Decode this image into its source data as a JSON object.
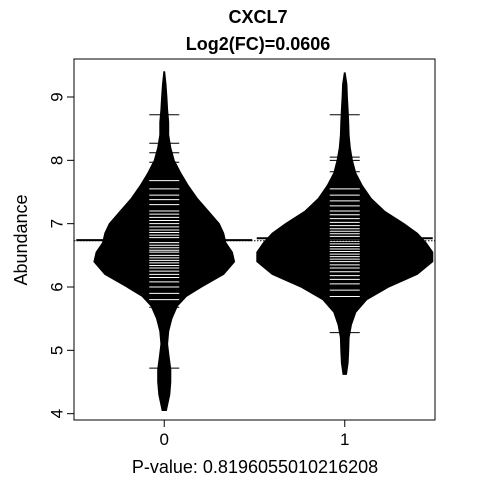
{
  "chart_data": {
    "type": "beanplot",
    "title": "CXCL7",
    "subtitle": "Log2(FC)=0.0606",
    "xlabel": "P-value: 0.819605501021620​8",
    "ylabel": "Abundance",
    "categories": [
      "0",
      "1"
    ],
    "ylim": [
      3.9,
      9.6
    ],
    "xlim": [
      0.5,
      2.5
    ],
    "yticks": [
      4,
      5,
      6,
      7,
      8,
      9
    ],
    "overall_mean": 6.73,
    "groups": [
      {
        "label": "0",
        "mean": 6.74,
        "density": [
          [
            4.05,
            0.01
          ],
          [
            4.3,
            0.025
          ],
          [
            4.5,
            0.03
          ],
          [
            4.7,
            0.03
          ],
          [
            4.9,
            0.022
          ],
          [
            5.1,
            0.015
          ],
          [
            5.3,
            0.02
          ],
          [
            5.5,
            0.035
          ],
          [
            5.7,
            0.06
          ],
          [
            5.85,
            0.1
          ],
          [
            6.0,
            0.17
          ],
          [
            6.2,
            0.27
          ],
          [
            6.4,
            0.32
          ],
          [
            6.55,
            0.31
          ],
          [
            6.7,
            0.28
          ],
          [
            6.85,
            0.27
          ],
          [
            7.0,
            0.25
          ],
          [
            7.2,
            0.2
          ],
          [
            7.4,
            0.15
          ],
          [
            7.6,
            0.11
          ],
          [
            7.8,
            0.075
          ],
          [
            8.0,
            0.045
          ],
          [
            8.2,
            0.03
          ],
          [
            8.4,
            0.02
          ],
          [
            8.6,
            0.02
          ],
          [
            8.8,
            0.015
          ],
          [
            9.0,
            0.012
          ],
          [
            9.2,
            0.008
          ],
          [
            9.4,
            0.002
          ]
        ],
        "observations": [
          4.72,
          5.68,
          5.8,
          5.9,
          6.0,
          6.08,
          6.15,
          6.2,
          6.25,
          6.3,
          6.34,
          6.38,
          6.42,
          6.46,
          6.5,
          6.55,
          6.58,
          6.62,
          6.66,
          6.7,
          6.74,
          6.78,
          6.82,
          6.86,
          6.9,
          6.95,
          7.0,
          7.05,
          7.1,
          7.15,
          7.2,
          7.3,
          7.38,
          7.45,
          7.55,
          7.68,
          7.8,
          7.97,
          8.12,
          8.27,
          8.72
        ]
      },
      {
        "label": "1",
        "mean": 6.77,
        "density": [
          [
            4.62,
            0.008
          ],
          [
            4.8,
            0.015
          ],
          [
            5.0,
            0.018
          ],
          [
            5.2,
            0.02
          ],
          [
            5.4,
            0.03
          ],
          [
            5.6,
            0.05
          ],
          [
            5.8,
            0.1
          ],
          [
            6.0,
            0.2
          ],
          [
            6.2,
            0.33
          ],
          [
            6.4,
            0.4
          ],
          [
            6.55,
            0.4
          ],
          [
            6.7,
            0.37
          ],
          [
            6.85,
            0.33
          ],
          [
            7.0,
            0.27
          ],
          [
            7.2,
            0.18
          ],
          [
            7.4,
            0.12
          ],
          [
            7.6,
            0.08
          ],
          [
            7.8,
            0.05
          ],
          [
            8.0,
            0.035
          ],
          [
            8.2,
            0.025
          ],
          [
            8.4,
            0.02
          ],
          [
            8.6,
            0.018
          ],
          [
            8.8,
            0.015
          ],
          [
            9.0,
            0.012
          ],
          [
            9.2,
            0.01
          ],
          [
            9.38,
            0.002
          ]
        ],
        "observations": [
          5.28,
          5.85,
          5.95,
          6.05,
          6.12,
          6.18,
          6.24,
          6.3,
          6.35,
          6.4,
          6.44,
          6.48,
          6.52,
          6.56,
          6.6,
          6.64,
          6.68,
          6.72,
          6.76,
          6.8,
          6.84,
          6.88,
          6.92,
          6.97,
          7.02,
          7.08,
          7.14,
          7.2,
          7.28,
          7.36,
          7.45,
          7.55,
          7.68,
          7.82,
          8.0,
          8.05,
          8.72
        ]
      }
    ]
  }
}
